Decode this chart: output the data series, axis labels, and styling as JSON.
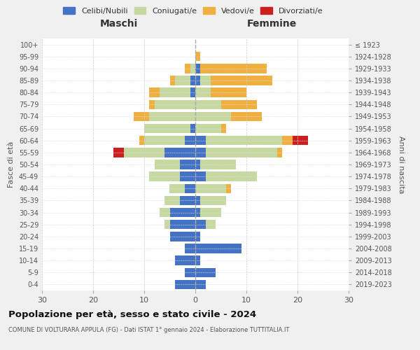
{
  "age_groups": [
    "100+",
    "95-99",
    "90-94",
    "85-89",
    "80-84",
    "75-79",
    "70-74",
    "65-69",
    "60-64",
    "55-59",
    "50-54",
    "45-49",
    "40-44",
    "35-39",
    "30-34",
    "25-29",
    "20-24",
    "15-19",
    "10-14",
    "5-9",
    "0-4"
  ],
  "birth_years": [
    "≤ 1923",
    "1924-1928",
    "1929-1933",
    "1934-1938",
    "1939-1943",
    "1944-1948",
    "1949-1953",
    "1954-1958",
    "1959-1963",
    "1964-1968",
    "1969-1973",
    "1974-1978",
    "1979-1983",
    "1984-1988",
    "1989-1993",
    "1994-1998",
    "1999-2003",
    "2004-2008",
    "2009-2013",
    "2014-2018",
    "2019-2023"
  ],
  "maschi": {
    "celibi": [
      0,
      0,
      0,
      1,
      1,
      0,
      0,
      1,
      2,
      6,
      3,
      3,
      2,
      3,
      5,
      5,
      5,
      2,
      4,
      2,
      4
    ],
    "coniugati": [
      0,
      0,
      1,
      3,
      6,
      8,
      9,
      9,
      8,
      8,
      5,
      6,
      3,
      3,
      2,
      1,
      0,
      0,
      0,
      0,
      0
    ],
    "vedovi": [
      0,
      0,
      1,
      1,
      2,
      1,
      3,
      0,
      1,
      0,
      0,
      0,
      0,
      0,
      0,
      0,
      0,
      0,
      0,
      0,
      0
    ],
    "divorziati": [
      0,
      0,
      0,
      0,
      0,
      0,
      0,
      0,
      0,
      2,
      0,
      0,
      0,
      0,
      0,
      0,
      0,
      0,
      0,
      0,
      0
    ]
  },
  "femmine": {
    "nubili": [
      0,
      0,
      1,
      1,
      0,
      0,
      0,
      0,
      2,
      2,
      1,
      2,
      0,
      1,
      1,
      2,
      1,
      9,
      1,
      4,
      2
    ],
    "coniugate": [
      0,
      0,
      0,
      2,
      3,
      5,
      7,
      5,
      15,
      14,
      7,
      10,
      6,
      5,
      4,
      2,
      0,
      0,
      0,
      0,
      0
    ],
    "vedove": [
      0,
      1,
      13,
      12,
      7,
      7,
      6,
      1,
      2,
      1,
      0,
      0,
      1,
      0,
      0,
      0,
      0,
      0,
      0,
      0,
      0
    ],
    "divorziate": [
      0,
      0,
      0,
      0,
      0,
      0,
      0,
      0,
      3,
      0,
      0,
      0,
      0,
      0,
      0,
      0,
      0,
      0,
      0,
      0,
      0
    ]
  },
  "colors": {
    "celibi": "#4472c4",
    "coniugati": "#c5d9a0",
    "vedovi": "#f0b040",
    "divorziati": "#cc2020"
  },
  "xlim": 30,
  "title": "Popolazione per età, sesso e stato civile - 2024",
  "subtitle": "COMUNE DI VOLTURARA APPULA (FG) - Dati ISTAT 1° gennaio 2024 - Elaborazione TUTTITALIA.IT",
  "xlabel_left": "Maschi",
  "xlabel_right": "Femmine",
  "ylabel_left": "Fasce di età",
  "ylabel_right": "Anni di nascita",
  "legend_labels": [
    "Celibi/Nubili",
    "Coniugati/e",
    "Vedovi/e",
    "Divorziati/e"
  ],
  "bg_color": "#f0f0f0",
  "plot_bg": "#ffffff"
}
